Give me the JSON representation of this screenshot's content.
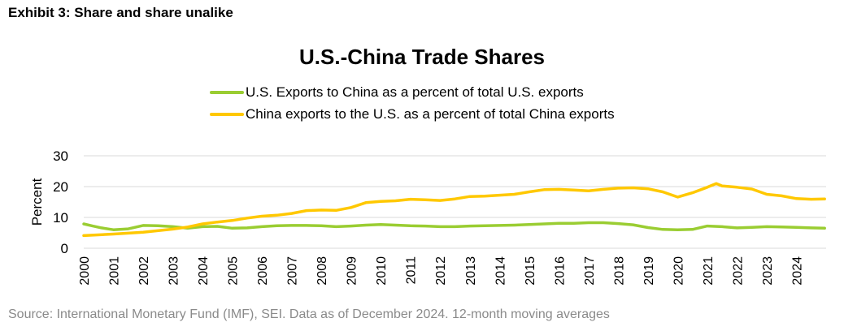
{
  "exhibit_title": "Exhibit 3: Share and share unalike",
  "source_note": "Source: International Monetary Fund (IMF), SEI. Data as of December 2024. 12-month moving averages",
  "colors": {
    "us_series": "#9ACD32",
    "china_series": "#FFC800",
    "grid": "#d9d9d9",
    "source_text": "#8a8a8a"
  },
  "chart_data": {
    "type": "line",
    "title": "U.S.-China Trade Shares",
    "xlabel": "",
    "ylabel": "Percent",
    "ylim": [
      0,
      30
    ],
    "yticks": [
      "0",
      "10",
      "20",
      "30"
    ],
    "xlim": [
      2000,
      2025
    ],
    "xticks": [
      "2000",
      "2001",
      "2002",
      "2003",
      "2004",
      "2005",
      "2006",
      "2007",
      "2008",
      "2009",
      "2010",
      "2011",
      "2012",
      "2013",
      "2014",
      "2015",
      "2016",
      "2017",
      "2018",
      "2019",
      "2020",
      "2021",
      "2022",
      "2023",
      "2024"
    ],
    "grid": "horizontal",
    "legend_position": "top",
    "series": [
      {
        "name": "U.S. Exports to China as a percent of total U.S. exports",
        "color": "#9ACD32",
        "x": [
          2000,
          2000.3,
          2000.6,
          2001,
          2001.5,
          2002,
          2002.5,
          2003,
          2003.5,
          2004,
          2004.5,
          2005,
          2005.5,
          2006,
          2006.5,
          2007,
          2007.5,
          2008,
          2008.5,
          2009,
          2009.5,
          2010,
          2010.5,
          2011,
          2011.5,
          2012,
          2012.5,
          2013,
          2013.5,
          2014,
          2014.5,
          2015,
          2015.5,
          2016,
          2016.5,
          2017,
          2017.5,
          2018,
          2018.5,
          2019,
          2019.5,
          2020,
          2020.5,
          2021,
          2021.5,
          2022,
          2022.5,
          2023,
          2023.5,
          2024,
          2024.5,
          2024.95
        ],
        "y": [
          7.9,
          7.2,
          6.6,
          6.0,
          6.3,
          7.4,
          7.3,
          7.0,
          6.5,
          7.0,
          7.1,
          6.5,
          6.6,
          7.0,
          7.3,
          7.4,
          7.4,
          7.3,
          7.0,
          7.2,
          7.5,
          7.7,
          7.5,
          7.3,
          7.2,
          7.0,
          7.0,
          7.2,
          7.3,
          7.4,
          7.5,
          7.7,
          7.9,
          8.1,
          8.1,
          8.3,
          8.3,
          8.0,
          7.6,
          6.7,
          6.1,
          6.0,
          6.1,
          7.2,
          7.0,
          6.6,
          6.8,
          7.0,
          6.9,
          6.8,
          6.6,
          6.5
        ]
      },
      {
        "name": "China exports to the U.S. as a percent of total China exports",
        "color": "#FFC800",
        "x": [
          2000,
          2001,
          2002,
          2003,
          2003.5,
          2004,
          2004.5,
          2005,
          2005.5,
          2006,
          2006.5,
          2007,
          2007.5,
          2008,
          2008.5,
          2009,
          2009.5,
          2010,
          2010.5,
          2011,
          2011.5,
          2012,
          2012.5,
          2013,
          2013.5,
          2014,
          2014.5,
          2015,
          2015.5,
          2016,
          2016.5,
          2017,
          2017.5,
          2018,
          2018.5,
          2019,
          2019.5,
          2020,
          2020.5,
          2021,
          2021.3,
          2021.5,
          2022,
          2022.5,
          2023,
          2023.5,
          2024,
          2024.5,
          2024.95
        ],
        "y": [
          4.1,
          4.6,
          5.2,
          6.2,
          6.9,
          7.9,
          8.5,
          9.0,
          9.8,
          10.4,
          10.7,
          11.3,
          12.2,
          12.4,
          12.3,
          13.2,
          14.8,
          15.2,
          15.4,
          15.9,
          15.7,
          15.5,
          16.0,
          16.8,
          16.9,
          17.2,
          17.5,
          18.3,
          19.0,
          19.1,
          18.9,
          18.6,
          19.1,
          19.5,
          19.6,
          19.3,
          18.3,
          16.6,
          18.0,
          19.8,
          21.0,
          20.2,
          19.8,
          19.2,
          17.5,
          17.0,
          16.1,
          15.9,
          16.0
        ]
      }
    ]
  }
}
